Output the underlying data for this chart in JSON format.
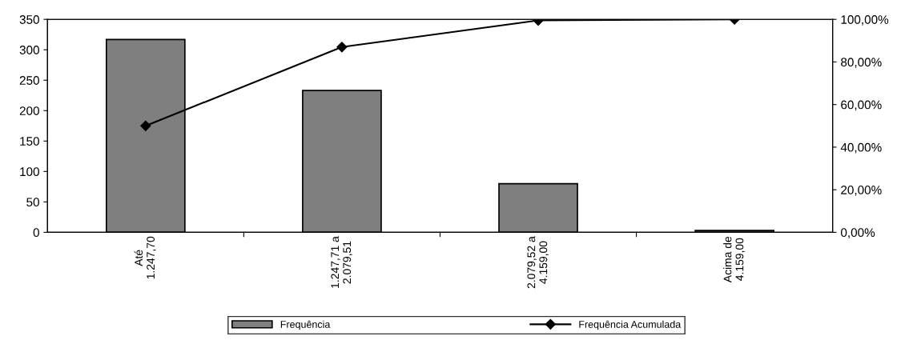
{
  "chart_data": {
    "type": "bar",
    "categories": [
      "Até\n1.247,70",
      "1.247,71 a\n2.079,51",
      "2.079,52 a\n4.159,00",
      "Acima de\n4.159,00"
    ],
    "series": [
      {
        "name": "Frequência",
        "color": "#7f7f7f",
        "values": [
          317,
          233,
          80,
          3
        ]
      },
      {
        "name": "Frequência Acumulada",
        "type": "line",
        "axis": "y2",
        "color": "#000000",
        "marker": "diamond",
        "values": [
          50,
          87,
          99.5,
          100
        ]
      }
    ],
    "ylim": [
      0,
      350
    ],
    "yticks": [
      0,
      50,
      100,
      150,
      200,
      250,
      300,
      350
    ],
    "y2lim": [
      0,
      100
    ],
    "y2ticks": [
      {
        "value": 0,
        "label": "0,00%"
      },
      {
        "value": 20,
        "label": "20,00%"
      },
      {
        "value": 40,
        "label": "40,00%"
      },
      {
        "value": 60,
        "label": "60,00%"
      },
      {
        "value": 80,
        "label": "80,00%"
      },
      {
        "value": 100,
        "label": "100,00%"
      }
    ],
    "grid": false,
    "legend": "bottom"
  }
}
